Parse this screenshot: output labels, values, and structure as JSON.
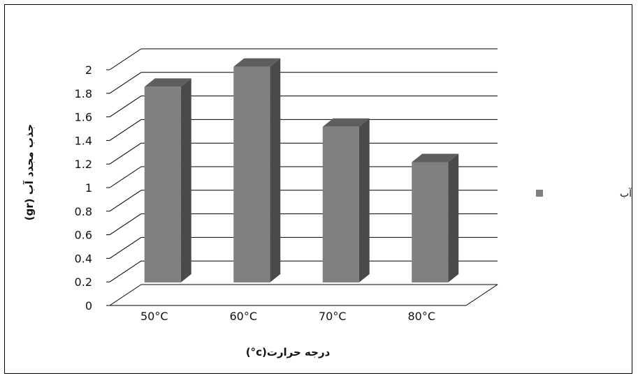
{
  "chart_data": {
    "type": "bar",
    "categories": [
      "50°C",
      "60°C",
      "70°C",
      "80°C"
    ],
    "series": [
      {
        "name": "جذب مجدد آب",
        "values": [
          1.72,
          1.89,
          1.38,
          1.08
        ]
      }
    ],
    "xlabel": "درجه حرارت(c°)",
    "ylabel": "جذب مجدد آب (gr)",
    "ylim": [
      0,
      2
    ],
    "yticks": [
      "0",
      "0.2",
      "0.4",
      "0.6",
      "0.8",
      "1",
      "1.2",
      "1.4",
      "1.6",
      "1.8",
      "2"
    ],
    "grid": true,
    "three_d": true,
    "legend_position": "right",
    "colors": {
      "bar_front": "#808080",
      "bar_side": "#4a4a4a",
      "bar_top": "#5e5e5e",
      "grid": "#000000"
    }
  }
}
